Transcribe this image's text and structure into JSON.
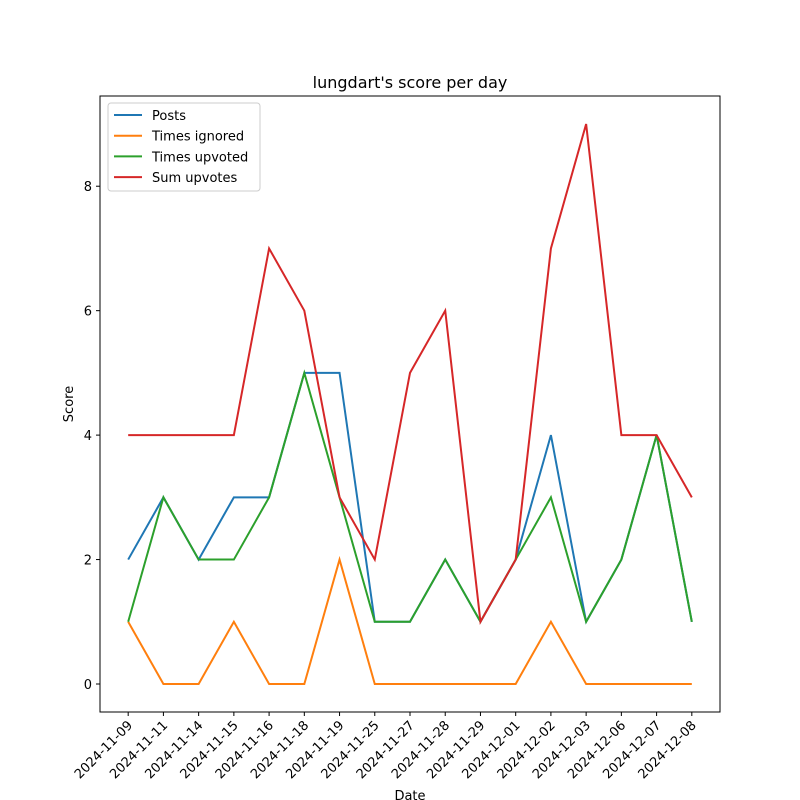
{
  "chart_data": {
    "type": "line",
    "title": "lungdart's score per day",
    "x_label": "Date",
    "y_label": "Score",
    "categories": [
      "2024-11-09",
      "2024-11-11",
      "2024-11-14",
      "2024-11-15",
      "2024-11-16",
      "2024-11-18",
      "2024-11-19",
      "2024-11-25",
      "2024-11-27",
      "2024-11-28",
      "2024-11-29",
      "2024-12-01",
      "2024-12-02",
      "2024-12-03",
      "2024-12-06",
      "2024-12-07",
      "2024-12-08"
    ],
    "series": [
      {
        "name": "Posts",
        "color": "#1f77b4",
        "values": [
          2,
          3,
          2,
          3,
          3,
          5,
          5,
          1,
          1,
          2,
          1,
          2,
          4,
          1,
          2,
          4,
          1
        ]
      },
      {
        "name": "Times ignored",
        "color": "#ff7f0e",
        "values": [
          1,
          0,
          0,
          1,
          0,
          0,
          2,
          0,
          0,
          0,
          0,
          0,
          1,
          0,
          0,
          0,
          0
        ]
      },
      {
        "name": "Times upvoted",
        "color": "#2ca02c",
        "values": [
          1,
          3,
          2,
          2,
          3,
          5,
          3,
          1,
          1,
          2,
          1,
          2,
          3,
          1,
          2,
          4,
          1
        ]
      },
      {
        "name": "Sum upvotes",
        "color": "#d62728",
        "values": [
          4,
          4,
          4,
          4,
          7,
          6,
          3,
          2,
          5,
          6,
          1,
          2,
          7,
          9,
          4,
          4,
          3
        ]
      }
    ],
    "ylim": [
      -0.45,
      9.45
    ],
    "yticks": [
      0,
      2,
      4,
      6,
      8
    ],
    "legend": "upper left"
  }
}
